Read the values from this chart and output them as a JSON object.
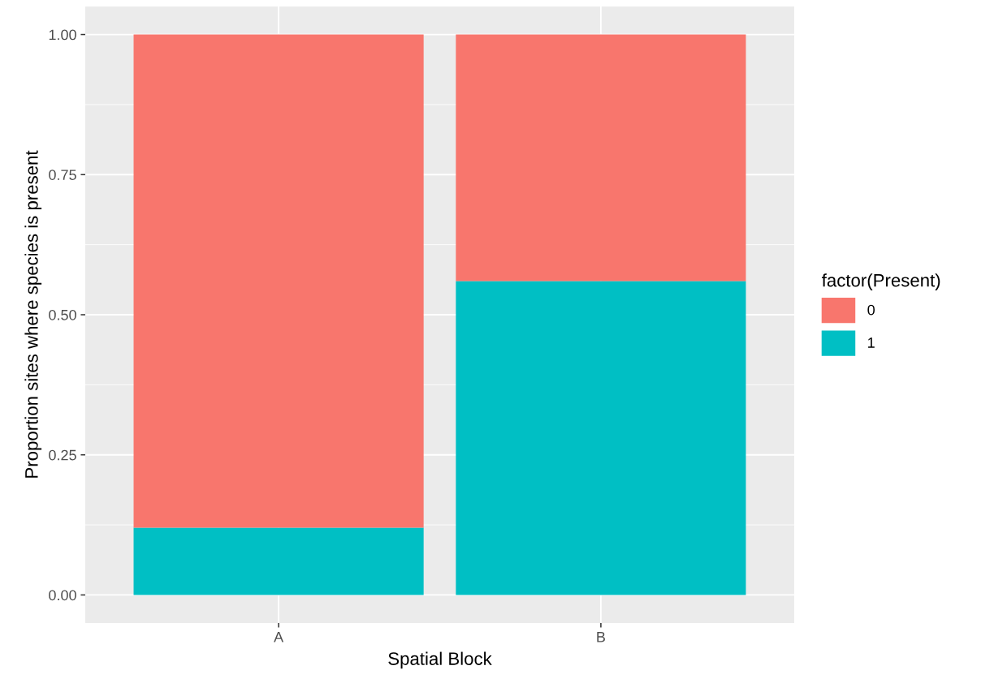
{
  "chart_data": {
    "type": "bar",
    "stacked": true,
    "xlabel": "Spatial Block",
    "ylabel": "Proportion sites where species is present",
    "legend_title": "factor(Present)",
    "categories": [
      "A",
      "B"
    ],
    "series": [
      {
        "name": "1",
        "color": "#00bfc4",
        "values": [
          0.12,
          0.56
        ]
      },
      {
        "name": "0",
        "color": "#f8766d",
        "values": [
          0.88,
          0.44
        ]
      }
    ],
    "ylim": [
      -0.05,
      1.05
    ],
    "yticks": [
      {
        "value": 0,
        "label": "0.00"
      },
      {
        "value": 0.25,
        "label": "0.25"
      },
      {
        "value": 0.5,
        "label": "0.50"
      },
      {
        "value": 0.75,
        "label": "0.75"
      },
      {
        "value": 1,
        "label": "1.00"
      }
    ],
    "grid": true,
    "legend": "right"
  }
}
